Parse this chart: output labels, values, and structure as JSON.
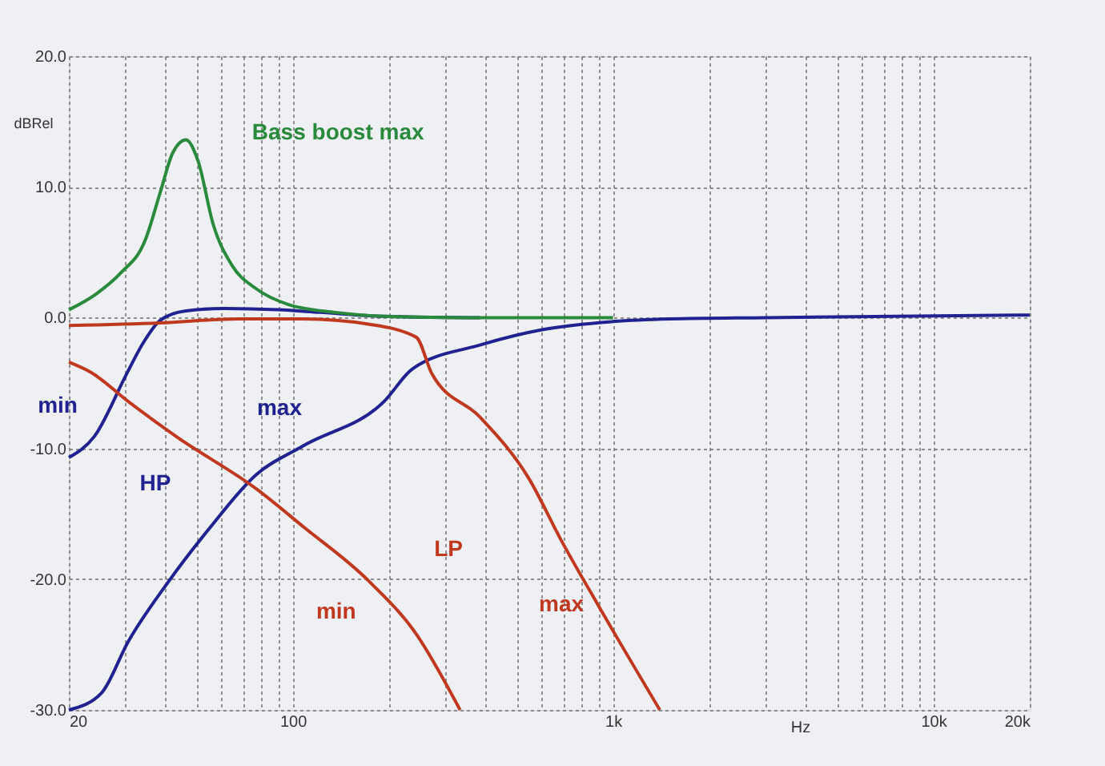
{
  "chart_data": {
    "type": "line",
    "xlabel": "Hz",
    "ylabel": "dBRel",
    "xlim": [
      20,
      20000
    ],
    "ylim": [
      -30,
      20
    ],
    "log": "x",
    "grid": true,
    "marker": "none",
    "line_style": "solid",
    "xticks": [
      20,
      {
        "value": 30,
        "label": null
      },
      {
        "value": 40,
        "label": null
      },
      {
        "value": 50,
        "label": null
      },
      {
        "value": 60,
        "label": null
      },
      {
        "value": 70,
        "label": null
      },
      {
        "value": 80,
        "label": null
      },
      {
        "value": 90,
        "label": null
      },
      100,
      {
        "value": 200,
        "label": null
      },
      {
        "value": 300,
        "label": null
      },
      {
        "value": 400,
        "label": null
      },
      {
        "value": 500,
        "label": null
      },
      {
        "value": 600,
        "label": null
      },
      {
        "value": 700,
        "label": null
      },
      {
        "value": 800,
        "label": null
      },
      {
        "value": 900,
        "label": null
      },
      {
        "value": 1000,
        "label": "1k"
      },
      {
        "value": 2000,
        "label": null
      },
      {
        "value": 3000,
        "label": null
      },
      {
        "value": 4000,
        "label": null
      },
      {
        "value": 5000,
        "label": null
      },
      {
        "value": 6000,
        "label": null
      },
      {
        "value": 7000,
        "label": null
      },
      {
        "value": 8000,
        "label": null
      },
      {
        "value": 9000,
        "label": null
      },
      {
        "value": 10000,
        "label": "10k"
      },
      {
        "value": 20000,
        "label": "20k"
      }
    ],
    "yticks": [
      {
        "value": 20,
        "label": "20.0"
      },
      {
        "value": 10,
        "label": "10.0"
      },
      {
        "value": 0,
        "label": "0.0"
      },
      {
        "value": -10,
        "label": "-10.0"
      },
      {
        "value": -20,
        "label": "-20.0"
      },
      {
        "value": -30,
        "label": "-30.0"
      }
    ],
    "series": [
      {
        "name": "max",
        "color": "#1f2290",
        "x": [
          20,
          25.3,
          30.6,
          40.9,
          54.6,
          77,
          108,
          193,
          237,
          384,
          610,
          1000,
          1500,
          3000,
          20000
        ],
        "values": [
          -30,
          -28.7,
          -24.8,
          -20.2,
          -16.2,
          -12,
          -9.8,
          -6.4,
          -3.9,
          -2.1,
          -0.9,
          -0.3,
          -0.1,
          0,
          0.2
        ]
      },
      {
        "name": "min",
        "color": "#1f2290",
        "x": [
          20,
          24,
          30.3,
          34,
          38.6,
          46,
          61,
          90,
          122,
          193,
          384
        ],
        "values": [
          -10.7,
          -9.1,
          -4.3,
          -2,
          -0.2,
          0.5,
          0.7,
          0.6,
          0.4,
          0.1,
          0
        ]
      },
      {
        "name": "min",
        "color": "#c0391f",
        "x": [
          20,
          23.5,
          30.6,
          43.3,
          77,
          108,
          172,
          243,
          333
        ],
        "values": [
          -3.4,
          -4.2,
          -6.4,
          -9.1,
          -13.1,
          -16,
          -20.1,
          -24.2,
          -30
        ]
      },
      {
        "name": "max",
        "color": "#c0391f",
        "x": [
          20,
          38.6,
          68,
          108,
          172,
          243,
          272,
          384,
          546,
          688,
          899,
          1400
        ],
        "values": [
          -0.6,
          -0.4,
          -0.1,
          -0.1,
          -0.5,
          -1.5,
          -4.3,
          -7.6,
          -12.3,
          -17,
          -22,
          -30
        ]
      },
      {
        "name": "Bass boost max",
        "color": "#2a8a3c",
        "x": [
          20,
          24.3,
          29,
          34.6,
          38.6,
          42.2,
          46.4,
          50.6,
          56.5,
          64.6,
          77,
          97,
          136,
          193,
          384,
          1000
        ],
        "values": [
          0.6,
          1.8,
          3.4,
          5.9,
          9.6,
          12.6,
          13.6,
          12,
          7.1,
          4,
          2.2,
          1,
          0.4,
          0.1,
          0,
          0
        ]
      }
    ],
    "annotations": [
      "HP",
      "LP"
    ]
  }
}
